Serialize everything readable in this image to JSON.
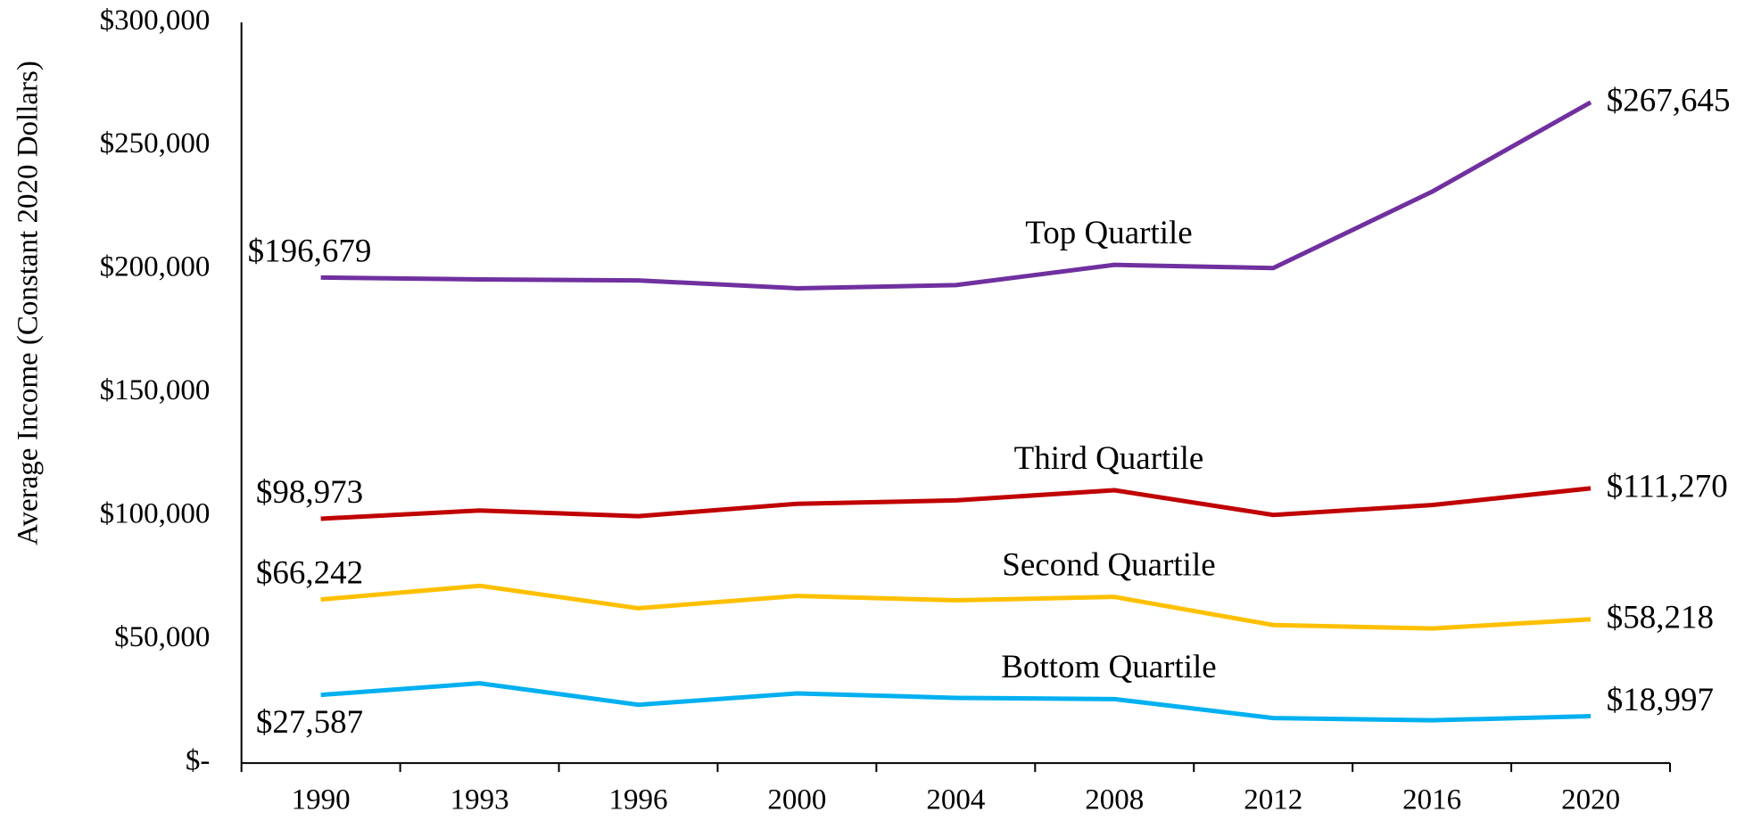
{
  "chart_data": {
    "type": "line",
    "y_label": "Average Income (Constant 2020 Dollars)",
    "categories": [
      "1990",
      "1993",
      "1996",
      "2000",
      "2004",
      "2008",
      "2012",
      "2016",
      "2020"
    ],
    "ylim": [
      0,
      300000
    ],
    "yticks": [
      {
        "value": 0,
        "label": "$-"
      },
      {
        "value": 50000,
        "label": "$50,000"
      },
      {
        "value": 100000,
        "label": "$100,000"
      },
      {
        "value": 150000,
        "label": "$150,000"
      },
      {
        "value": 200000,
        "label": "$200,000"
      },
      {
        "value": 250000,
        "label": "$250,000"
      },
      {
        "value": 300000,
        "label": "$300,000"
      }
    ],
    "grid": false,
    "series": [
      {
        "name": "Top Quartile",
        "color": "#7030a0",
        "values": [
          196679,
          195900,
          195500,
          192300,
          193600,
          201800,
          200500,
          231400,
          267645
        ],
        "value_labels": [
          "$196,679",
          null,
          null,
          null,
          null,
          null,
          null,
          null,
          "$267,645"
        ]
      },
      {
        "name": "Third Quartile",
        "color": "#c00000",
        "values": [
          98973,
          102300,
          100000,
          105000,
          106400,
          110500,
          100500,
          104500,
          111270
        ],
        "value_labels": [
          "$98,973",
          null,
          null,
          null,
          null,
          null,
          null,
          null,
          "$111,270"
        ]
      },
      {
        "name": "Second Quartile",
        "color": "#ffc000",
        "values": [
          66242,
          71800,
          62700,
          67700,
          65900,
          67300,
          55900,
          54500,
          58218
        ],
        "value_labels": [
          "$66,242",
          null,
          null,
          null,
          null,
          null,
          null,
          null,
          "$58,218"
        ]
      },
      {
        "name": "Bottom Quartile",
        "color": "#00b0f0",
        "values": [
          27587,
          32300,
          23600,
          28200,
          26400,
          25900,
          18200,
          17300,
          18997
        ],
        "value_labels": [
          "$27,587",
          null,
          null,
          null,
          null,
          null,
          null,
          null,
          "$18,997"
        ]
      }
    ]
  }
}
